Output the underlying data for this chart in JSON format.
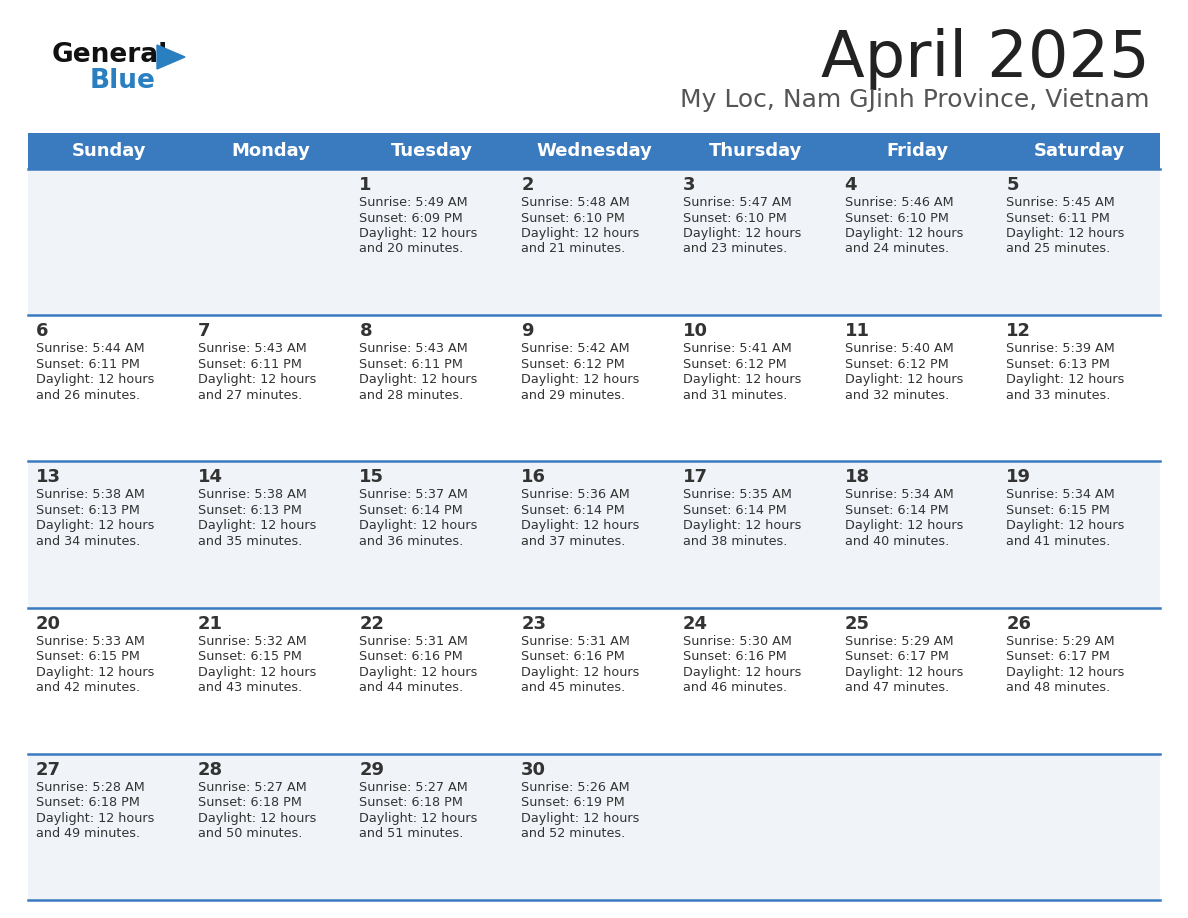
{
  "title": "April 2025",
  "subtitle": "My Loc, Nam GJinh Province, Vietnam",
  "header_bg_color": "#3a7abf",
  "header_text_color": "#ffffff",
  "day_names": [
    "Sunday",
    "Monday",
    "Tuesday",
    "Wednesday",
    "Thursday",
    "Friday",
    "Saturday"
  ],
  "row_line_color": "#3a7abf",
  "text_color": "#333333",
  "title_color": "#222222",
  "subtitle_color": "#555555",
  "logo_general_color": "#111111",
  "logo_blue_color": "#2a7fc1",
  "cell_bg_light": "#f0f4f8",
  "cell_bg_white": "#ffffff",
  "calendar": [
    [
      null,
      null,
      {
        "day": 1,
        "sunrise": "5:49 AM",
        "sunset": "6:09 PM",
        "daylight": "12 hours and 20 minutes."
      },
      {
        "day": 2,
        "sunrise": "5:48 AM",
        "sunset": "6:10 PM",
        "daylight": "12 hours and 21 minutes."
      },
      {
        "day": 3,
        "sunrise": "5:47 AM",
        "sunset": "6:10 PM",
        "daylight": "12 hours and 23 minutes."
      },
      {
        "day": 4,
        "sunrise": "5:46 AM",
        "sunset": "6:10 PM",
        "daylight": "12 hours and 24 minutes."
      },
      {
        "day": 5,
        "sunrise": "5:45 AM",
        "sunset": "6:11 PM",
        "daylight": "12 hours and 25 minutes."
      }
    ],
    [
      {
        "day": 6,
        "sunrise": "5:44 AM",
        "sunset": "6:11 PM",
        "daylight": "12 hours and 26 minutes."
      },
      {
        "day": 7,
        "sunrise": "5:43 AM",
        "sunset": "6:11 PM",
        "daylight": "12 hours and 27 minutes."
      },
      {
        "day": 8,
        "sunrise": "5:43 AM",
        "sunset": "6:11 PM",
        "daylight": "12 hours and 28 minutes."
      },
      {
        "day": 9,
        "sunrise": "5:42 AM",
        "sunset": "6:12 PM",
        "daylight": "12 hours and 29 minutes."
      },
      {
        "day": 10,
        "sunrise": "5:41 AM",
        "sunset": "6:12 PM",
        "daylight": "12 hours and 31 minutes."
      },
      {
        "day": 11,
        "sunrise": "5:40 AM",
        "sunset": "6:12 PM",
        "daylight": "12 hours and 32 minutes."
      },
      {
        "day": 12,
        "sunrise": "5:39 AM",
        "sunset": "6:13 PM",
        "daylight": "12 hours and 33 minutes."
      }
    ],
    [
      {
        "day": 13,
        "sunrise": "5:38 AM",
        "sunset": "6:13 PM",
        "daylight": "12 hours and 34 minutes."
      },
      {
        "day": 14,
        "sunrise": "5:38 AM",
        "sunset": "6:13 PM",
        "daylight": "12 hours and 35 minutes."
      },
      {
        "day": 15,
        "sunrise": "5:37 AM",
        "sunset": "6:14 PM",
        "daylight": "12 hours and 36 minutes."
      },
      {
        "day": 16,
        "sunrise": "5:36 AM",
        "sunset": "6:14 PM",
        "daylight": "12 hours and 37 minutes."
      },
      {
        "day": 17,
        "sunrise": "5:35 AM",
        "sunset": "6:14 PM",
        "daylight": "12 hours and 38 minutes."
      },
      {
        "day": 18,
        "sunrise": "5:34 AM",
        "sunset": "6:14 PM",
        "daylight": "12 hours and 40 minutes."
      },
      {
        "day": 19,
        "sunrise": "5:34 AM",
        "sunset": "6:15 PM",
        "daylight": "12 hours and 41 minutes."
      }
    ],
    [
      {
        "day": 20,
        "sunrise": "5:33 AM",
        "sunset": "6:15 PM",
        "daylight": "12 hours and 42 minutes."
      },
      {
        "day": 21,
        "sunrise": "5:32 AM",
        "sunset": "6:15 PM",
        "daylight": "12 hours and 43 minutes."
      },
      {
        "day": 22,
        "sunrise": "5:31 AM",
        "sunset": "6:16 PM",
        "daylight": "12 hours and 44 minutes."
      },
      {
        "day": 23,
        "sunrise": "5:31 AM",
        "sunset": "6:16 PM",
        "daylight": "12 hours and 45 minutes."
      },
      {
        "day": 24,
        "sunrise": "5:30 AM",
        "sunset": "6:16 PM",
        "daylight": "12 hours and 46 minutes."
      },
      {
        "day": 25,
        "sunrise": "5:29 AM",
        "sunset": "6:17 PM",
        "daylight": "12 hours and 47 minutes."
      },
      {
        "day": 26,
        "sunrise": "5:29 AM",
        "sunset": "6:17 PM",
        "daylight": "12 hours and 48 minutes."
      }
    ],
    [
      {
        "day": 27,
        "sunrise": "5:28 AM",
        "sunset": "6:18 PM",
        "daylight": "12 hours and 49 minutes."
      },
      {
        "day": 28,
        "sunrise": "5:27 AM",
        "sunset": "6:18 PM",
        "daylight": "12 hours and 50 minutes."
      },
      {
        "day": 29,
        "sunrise": "5:27 AM",
        "sunset": "6:18 PM",
        "daylight": "12 hours and 51 minutes."
      },
      {
        "day": 30,
        "sunrise": "5:26 AM",
        "sunset": "6:19 PM",
        "daylight": "12 hours and 52 minutes."
      },
      null,
      null,
      null
    ]
  ]
}
